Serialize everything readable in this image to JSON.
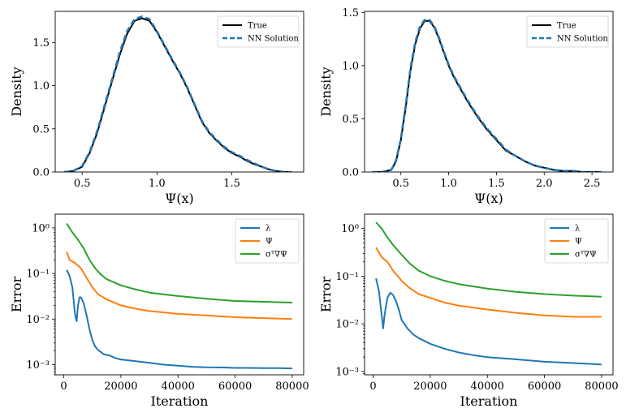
{
  "chart_data": [
    {
      "type": "line",
      "xlabel": "Ψ(x)",
      "ylabel": "Density",
      "xlim": [
        0.32,
        1.98
      ],
      "ylim": [
        0,
        1.86
      ],
      "xticks": [
        0.5,
        1.0,
        1.5
      ],
      "xtick_labels": [
        "0.5",
        "1.0",
        "1.5"
      ],
      "yticks": [
        0,
        0.5,
        1.0,
        1.5
      ],
      "ytick_labels": [
        "0.0",
        "0.5",
        "1.0",
        "1.5"
      ],
      "legend": "top-right",
      "series": [
        {
          "name": "True",
          "color": "#000000",
          "dash": "solid",
          "x": [
            0.38,
            0.44,
            0.5,
            0.55,
            0.6,
            0.65,
            0.7,
            0.75,
            0.8,
            0.85,
            0.9,
            0.95,
            1.0,
            1.05,
            1.1,
            1.15,
            1.2,
            1.25,
            1.3,
            1.35,
            1.4,
            1.45,
            1.5,
            1.55,
            1.6,
            1.65,
            1.7,
            1.75,
            1.8,
            1.85,
            1.9
          ],
          "y": [
            0.0,
            0.01,
            0.06,
            0.22,
            0.45,
            0.75,
            1.05,
            1.35,
            1.6,
            1.75,
            1.78,
            1.75,
            1.62,
            1.46,
            1.3,
            1.15,
            0.98,
            0.78,
            0.58,
            0.45,
            0.36,
            0.28,
            0.22,
            0.18,
            0.13,
            0.09,
            0.06,
            0.03,
            0.01,
            0.0,
            0.0
          ]
        },
        {
          "name": "NN Solution",
          "color": "#1f77b4",
          "dash": "dashed",
          "x": [
            0.38,
            0.44,
            0.5,
            0.55,
            0.6,
            0.65,
            0.7,
            0.75,
            0.8,
            0.85,
            0.9,
            0.95,
            1.0,
            1.05,
            1.1,
            1.15,
            1.2,
            1.25,
            1.3,
            1.35,
            1.4,
            1.45,
            1.5,
            1.55,
            1.6,
            1.65,
            1.7,
            1.75,
            1.8,
            1.85,
            1.9
          ],
          "y": [
            0.0,
            0.01,
            0.07,
            0.23,
            0.47,
            0.77,
            1.07,
            1.38,
            1.63,
            1.77,
            1.8,
            1.77,
            1.63,
            1.47,
            1.31,
            1.16,
            0.99,
            0.79,
            0.59,
            0.46,
            0.37,
            0.29,
            0.23,
            0.19,
            0.14,
            0.1,
            0.06,
            0.03,
            0.01,
            0.0,
            0.0
          ]
        }
      ]
    },
    {
      "type": "line",
      "xlabel": "Ψ(x)",
      "ylabel": "Density",
      "xlim": [
        0.12,
        2.72
      ],
      "ylim": [
        0,
        1.51
      ],
      "xticks": [
        0.5,
        1.0,
        1.5,
        2.0,
        2.5
      ],
      "xtick_labels": [
        "0.5",
        "1.0",
        "1.5",
        "2.0",
        "2.5"
      ],
      "yticks": [
        0,
        0.5,
        1.0,
        1.5
      ],
      "ytick_labels": [
        "0.0",
        "0.5",
        "1.0",
        "1.5"
      ],
      "legend": "top-right",
      "series": [
        {
          "name": "True",
          "color": "#000000",
          "dash": "solid",
          "x": [
            0.2,
            0.3,
            0.4,
            0.45,
            0.5,
            0.55,
            0.6,
            0.65,
            0.7,
            0.75,
            0.8,
            0.85,
            0.9,
            0.95,
            1.0,
            1.05,
            1.1,
            1.15,
            1.2,
            1.3,
            1.4,
            1.5,
            1.6,
            1.7,
            1.8,
            1.9,
            2.0,
            2.1,
            2.2,
            2.3,
            2.4,
            2.5,
            2.6
          ],
          "y": [
            0.0,
            0.0,
            0.02,
            0.1,
            0.3,
            0.6,
            0.95,
            1.2,
            1.35,
            1.42,
            1.42,
            1.36,
            1.25,
            1.12,
            1.0,
            0.9,
            0.82,
            0.74,
            0.66,
            0.52,
            0.4,
            0.3,
            0.2,
            0.15,
            0.1,
            0.06,
            0.04,
            0.02,
            0.01,
            0.01,
            0.0,
            0.0,
            0.0
          ]
        },
        {
          "name": "NN Solution",
          "color": "#1f77b4",
          "dash": "dashed",
          "x": [
            0.2,
            0.3,
            0.4,
            0.45,
            0.5,
            0.55,
            0.6,
            0.65,
            0.7,
            0.75,
            0.8,
            0.85,
            0.9,
            0.95,
            1.0,
            1.05,
            1.1,
            1.15,
            1.2,
            1.3,
            1.4,
            1.5,
            1.6,
            1.7,
            1.8,
            1.9,
            2.0,
            2.1,
            2.2,
            2.3,
            2.4,
            2.5,
            2.6
          ],
          "y": [
            0.0,
            0.0,
            0.02,
            0.11,
            0.31,
            0.62,
            0.97,
            1.22,
            1.37,
            1.43,
            1.43,
            1.37,
            1.26,
            1.13,
            1.01,
            0.91,
            0.83,
            0.75,
            0.67,
            0.53,
            0.41,
            0.31,
            0.21,
            0.15,
            0.1,
            0.06,
            0.04,
            0.02,
            0.01,
            0.01,
            0.0,
            0.0,
            0.0
          ]
        }
      ]
    },
    {
      "type": "line",
      "xlabel": "Iteration",
      "ylabel": "Error",
      "yscale": "log",
      "xlim": [
        -3000,
        84000
      ],
      "ylim": [
        0.0006,
        2.0
      ],
      "xticks": [
        0,
        20000,
        40000,
        60000,
        80000
      ],
      "xtick_labels": [
        "0",
        "20000",
        "40000",
        "60000",
        "80000"
      ],
      "yticks": [
        0.001,
        0.01,
        0.1,
        1
      ],
      "ytick_labels": [
        "10⁻³",
        "10⁻²",
        "10⁻¹",
        "10⁰"
      ],
      "legend": "top-right",
      "series": [
        {
          "name": "λ",
          "color": "#1f77b4",
          "x": [
            1000,
            2000,
            3000,
            4000,
            4500,
            5000,
            5500,
            6000,
            7000,
            8000,
            9000,
            10000,
            11000,
            12000,
            14000,
            16000,
            18000,
            20000,
            25000,
            30000,
            35000,
            40000,
            45000,
            50000,
            55000,
            60000,
            65000,
            70000,
            75000,
            80000
          ],
          "y": [
            0.12,
            0.09,
            0.05,
            0.012,
            0.009,
            0.02,
            0.03,
            0.03,
            0.022,
            0.012,
            0.006,
            0.0035,
            0.0025,
            0.0021,
            0.0017,
            0.0016,
            0.0014,
            0.0013,
            0.0012,
            0.0011,
            0.001,
            0.00095,
            0.0009,
            0.00088,
            0.00087,
            0.00085,
            0.00085,
            0.00084,
            0.00084,
            0.00083
          ]
        },
        {
          "name": "Ψ",
          "color": "#ff7f0e",
          "x": [
            1000,
            2000,
            4000,
            6000,
            8000,
            10000,
            12000,
            15000,
            20000,
            25000,
            30000,
            40000,
            50000,
            60000,
            70000,
            80000
          ],
          "y": [
            0.3,
            0.2,
            0.17,
            0.13,
            0.08,
            0.05,
            0.035,
            0.027,
            0.02,
            0.017,
            0.015,
            0.013,
            0.012,
            0.011,
            0.0105,
            0.01
          ]
        },
        {
          "name": "σᵀ∇Ψ",
          "color": "#2ca02c",
          "x": [
            1000,
            3000,
            5000,
            7000,
            9000,
            11000,
            13000,
            15000,
            20000,
            25000,
            30000,
            40000,
            50000,
            60000,
            70000,
            80000
          ],
          "y": [
            1.25,
            0.8,
            0.55,
            0.35,
            0.2,
            0.13,
            0.095,
            0.075,
            0.055,
            0.045,
            0.038,
            0.032,
            0.028,
            0.025,
            0.024,
            0.023
          ]
        }
      ]
    },
    {
      "type": "line",
      "xlabel": "Iteration",
      "ylabel": "Error",
      "yscale": "log",
      "xlim": [
        -3000,
        84000
      ],
      "ylim": [
        0.00085,
        2.0
      ],
      "xticks": [
        0,
        20000,
        40000,
        60000,
        80000
      ],
      "xtick_labels": [
        "0",
        "20000",
        "40000",
        "60000",
        "80000"
      ],
      "yticks": [
        0.001,
        0.01,
        0.1,
        1
      ],
      "ytick_labels": [
        "10⁻³",
        "10⁻²",
        "10⁻¹",
        "10⁰"
      ],
      "legend": "top-right",
      "series": [
        {
          "name": "λ",
          "color": "#1f77b4",
          "x": [
            1000,
            2000,
            3000,
            3500,
            4000,
            5000,
            6000,
            7000,
            8000,
            9000,
            10000,
            12000,
            14000,
            16000,
            20000,
            25000,
            30000,
            35000,
            40000,
            50000,
            60000,
            70000,
            80000
          ],
          "y": [
            0.09,
            0.05,
            0.015,
            0.008,
            0.015,
            0.035,
            0.045,
            0.04,
            0.03,
            0.02,
            0.012,
            0.008,
            0.006,
            0.005,
            0.0038,
            0.003,
            0.0025,
            0.0022,
            0.002,
            0.0018,
            0.0016,
            0.0015,
            0.0014
          ]
        },
        {
          "name": "Ψ",
          "color": "#ff7f0e",
          "x": [
            1000,
            3000,
            5000,
            7000,
            10000,
            13000,
            16000,
            20000,
            25000,
            30000,
            40000,
            50000,
            60000,
            70000,
            80000
          ],
          "y": [
            0.4,
            0.25,
            0.2,
            0.13,
            0.08,
            0.055,
            0.042,
            0.035,
            0.028,
            0.024,
            0.02,
            0.017,
            0.015,
            0.014,
            0.014
          ]
        },
        {
          "name": "σᵀ∇Ψ",
          "color": "#2ca02c",
          "x": [
            1000,
            3000,
            5000,
            7000,
            10000,
            13000,
            16000,
            20000,
            25000,
            30000,
            40000,
            50000,
            60000,
            70000,
            80000
          ],
          "y": [
            1.35,
            1.0,
            0.65,
            0.45,
            0.28,
            0.18,
            0.13,
            0.1,
            0.08,
            0.068,
            0.055,
            0.047,
            0.042,
            0.039,
            0.037
          ]
        }
      ]
    }
  ]
}
